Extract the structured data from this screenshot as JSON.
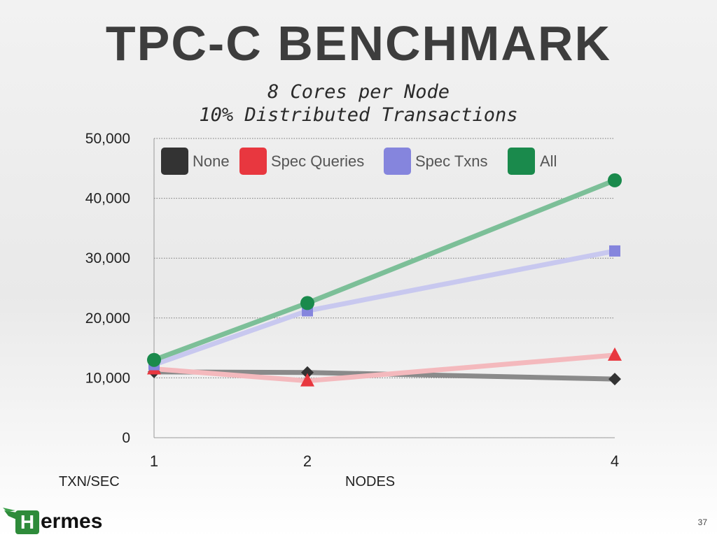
{
  "slide": {
    "title": "TPC-C BENCHMARK",
    "subtitle_line1": "8 Cores per Node",
    "subtitle_line2": "10% Distributed Transactions",
    "page_number": "37",
    "logo_initial": "H",
    "logo_rest": "ermes"
  },
  "chart_data": {
    "type": "line",
    "xlabel": "NODES",
    "ylabel": "TXN/SEC",
    "x": [
      1,
      2,
      4
    ],
    "x_tick_labels": [
      "1",
      "2",
      "4"
    ],
    "ylim": [
      0,
      50000
    ],
    "y_ticks": [
      0,
      10000,
      20000,
      30000,
      40000,
      50000
    ],
    "y_tick_labels": [
      "0",
      "10,000",
      "20,000",
      "30,000",
      "40,000",
      "50,000"
    ],
    "grid": "horizontal dotted",
    "legend_position": "top",
    "series": [
      {
        "name": "None",
        "values": [
          11000,
          10900,
          9800
        ],
        "color": "#333333",
        "line_color": "#8a8a8a",
        "marker": "diamond"
      },
      {
        "name": "Spec Queries",
        "values": [
          11500,
          9500,
          13800
        ],
        "color": "#e8373f",
        "line_color": "#f4b9bd",
        "marker": "triangle"
      },
      {
        "name": "Spec Txns",
        "values": [
          12200,
          21200,
          31200
        ],
        "color": "#8585dd",
        "line_color": "#c8c8ef",
        "marker": "square"
      },
      {
        "name": "All",
        "values": [
          13000,
          22500,
          43000
        ],
        "color": "#1a8a4c",
        "line_color": "#7cbf98",
        "marker": "circle"
      }
    ]
  }
}
